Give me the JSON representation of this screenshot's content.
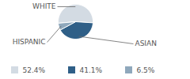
{
  "chart_data": {
    "type": "pie",
    "categories": [
      "WHITE",
      "ASIAN",
      "HISPANIC"
    ],
    "values": [
      52.4,
      41.1,
      6.5
    ],
    "value_labels": [
      "52.4%",
      "41.1%",
      "6.5%"
    ],
    "colors": [
      "#d3dbe3",
      "#2f5f87",
      "#8fa8bc"
    ],
    "legend": "bottom"
  }
}
